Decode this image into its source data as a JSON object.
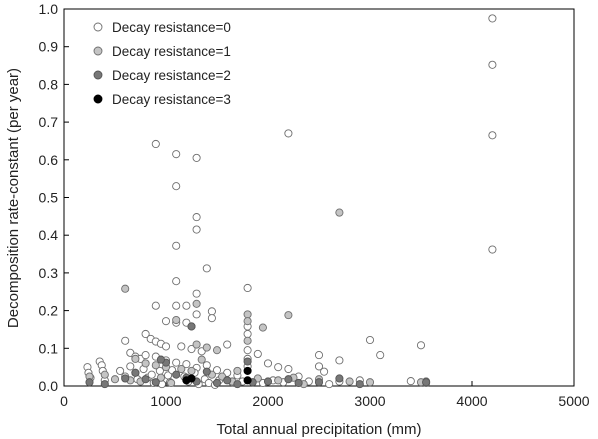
{
  "chart_data": {
    "type": "scatter",
    "xlabel": "Total annual precipitation (mm)",
    "ylabel": "Decomposition rate-constant (per year)",
    "xlim": [
      0,
      5000
    ],
    "ylim": [
      0,
      1.0
    ],
    "x_ticks": [
      "0",
      "1000",
      "2000",
      "3000",
      "4000",
      "5000"
    ],
    "y_ticks": [
      "0.0",
      "0.1",
      "0.2",
      "0.3",
      "0.4",
      "0.5",
      "0.6",
      "0.7",
      "0.8",
      "0.9",
      "1.0"
    ],
    "grid": false,
    "legend_position": "top-left",
    "series": [
      {
        "name": "Decay resistance=0",
        "fill": "#ffffff",
        "stroke": "#6e6e6e",
        "points": [
          [
            4200,
            0.975
          ],
          [
            4200,
            0.852
          ],
          [
            4200,
            0.665
          ],
          [
            4200,
            0.362
          ],
          [
            900,
            0.642
          ],
          [
            1100,
            0.615
          ],
          [
            1300,
            0.605
          ],
          [
            1100,
            0.53
          ],
          [
            2200,
            0.67
          ],
          [
            1300,
            0.448
          ],
          [
            1300,
            0.415
          ],
          [
            1100,
            0.372
          ],
          [
            1400,
            0.312
          ],
          [
            1100,
            0.278
          ],
          [
            1800,
            0.26
          ],
          [
            1300,
            0.245
          ],
          [
            900,
            0.213
          ],
          [
            1100,
            0.213
          ],
          [
            1200,
            0.213
          ],
          [
            1450,
            0.198
          ],
          [
            1300,
            0.19
          ],
          [
            1000,
            0.172
          ],
          [
            1100,
            0.168
          ],
          [
            1200,
            0.168
          ],
          [
            1450,
            0.18
          ],
          [
            1600,
            0.11
          ],
          [
            1800,
            0.158
          ],
          [
            1800,
            0.138
          ],
          [
            800,
            0.138
          ],
          [
            850,
            0.125
          ],
          [
            900,
            0.118
          ],
          [
            950,
            0.112
          ],
          [
            1000,
            0.105
          ],
          [
            1150,
            0.105
          ],
          [
            1250,
            0.098
          ],
          [
            1350,
            0.092
          ],
          [
            600,
            0.12
          ],
          [
            650,
            0.088
          ],
          [
            700,
            0.078
          ],
          [
            750,
            0.072
          ],
          [
            800,
            0.082
          ],
          [
            900,
            0.078
          ],
          [
            1000,
            0.068
          ],
          [
            1100,
            0.062
          ],
          [
            1200,
            0.058
          ],
          [
            1300,
            0.048
          ],
          [
            1400,
            0.055
          ],
          [
            1500,
            0.042
          ],
          [
            1600,
            0.035
          ],
          [
            1700,
            0.028
          ],
          [
            1800,
            0.095
          ],
          [
            1800,
            0.072
          ],
          [
            1800,
            0.052
          ],
          [
            1900,
            0.085
          ],
          [
            2000,
            0.06
          ],
          [
            2100,
            0.05
          ],
          [
            2200,
            0.045
          ],
          [
            2300,
            0.025
          ],
          [
            2500,
            0.082
          ],
          [
            2500,
            0.052
          ],
          [
            2550,
            0.038
          ],
          [
            2700,
            0.068
          ],
          [
            2700,
            0.012
          ],
          [
            2900,
            0.015
          ],
          [
            3000,
            0.122
          ],
          [
            3100,
            0.082
          ],
          [
            3400,
            0.013
          ],
          [
            3500,
            0.108
          ],
          [
            3550,
            0.012
          ],
          [
            3550,
            0.008
          ],
          [
            230,
            0.05
          ],
          [
            240,
            0.035
          ],
          [
            260,
            0.022
          ],
          [
            350,
            0.065
          ],
          [
            370,
            0.055
          ],
          [
            380,
            0.04
          ],
          [
            400,
            0.015
          ],
          [
            550,
            0.04
          ],
          [
            600,
            0.025
          ],
          [
            650,
            0.052
          ],
          [
            700,
            0.035
          ],
          [
            720,
            0.018
          ],
          [
            780,
            0.045
          ],
          [
            820,
            0.022
          ],
          [
            860,
            0.03
          ],
          [
            940,
            0.04
          ],
          [
            980,
            0.018
          ],
          [
            1020,
            0.028
          ],
          [
            1060,
            0.042
          ],
          [
            1180,
            0.025
          ],
          [
            1220,
            0.012
          ],
          [
            1280,
            0.035
          ],
          [
            1380,
            0.018
          ],
          [
            1420,
            0.008
          ],
          [
            1520,
            0.015
          ],
          [
            1650,
            0.01
          ],
          [
            1750,
            0.012
          ],
          [
            1950,
            0.008
          ],
          [
            2050,
            0.015
          ],
          [
            2150,
            0.01
          ],
          [
            2400,
            0.012
          ],
          [
            2600,
            0.005
          ],
          [
            880,
            0.008
          ],
          [
            960,
            0.005
          ],
          [
            1040,
            0.01
          ],
          [
            1320,
            0.005
          ],
          [
            1480,
            0.003
          ]
        ]
      },
      {
        "name": "Decay resistance=1",
        "fill": "#c4c4c4",
        "stroke": "#6e6e6e",
        "points": [
          [
            600,
            0.258
          ],
          [
            2700,
            0.46
          ],
          [
            1300,
            0.218
          ],
          [
            1100,
            0.175
          ],
          [
            1250,
            0.158
          ],
          [
            1800,
            0.19
          ],
          [
            1800,
            0.172
          ],
          [
            1950,
            0.155
          ],
          [
            2200,
            0.188
          ],
          [
            1800,
            0.12
          ],
          [
            1300,
            0.11
          ],
          [
            1400,
            0.102
          ],
          [
            1500,
            0.095
          ],
          [
            700,
            0.072
          ],
          [
            800,
            0.06
          ],
          [
            900,
            0.055
          ],
          [
            1000,
            0.05
          ],
          [
            1150,
            0.045
          ],
          [
            1250,
            0.04
          ],
          [
            1350,
            0.07
          ],
          [
            1450,
            0.03
          ],
          [
            1550,
            0.025
          ],
          [
            1700,
            0.04
          ],
          [
            1900,
            0.02
          ],
          [
            2100,
            0.015
          ],
          [
            2250,
            0.022
          ],
          [
            2500,
            0.018
          ],
          [
            2800,
            0.012
          ],
          [
            3000,
            0.01
          ],
          [
            250,
            0.025
          ],
          [
            400,
            0.03
          ],
          [
            500,
            0.018
          ],
          [
            650,
            0.015
          ],
          [
            750,
            0.012
          ],
          [
            950,
            0.022
          ],
          [
            1050,
            0.008
          ],
          [
            1650,
            0.012
          ],
          [
            2350,
            0.005
          ],
          [
            3500,
            0.01
          ]
        ]
      },
      {
        "name": "Decay resistance=2",
        "fill": "#777777",
        "stroke": "#555555",
        "points": [
          [
            1250,
            0.158
          ],
          [
            1800,
            0.065
          ],
          [
            1400,
            0.038
          ],
          [
            1000,
            0.062
          ],
          [
            950,
            0.07
          ],
          [
            1100,
            0.03
          ],
          [
            1200,
            0.022
          ],
          [
            1300,
            0.012
          ],
          [
            600,
            0.02
          ],
          [
            700,
            0.035
          ],
          [
            800,
            0.018
          ],
          [
            900,
            0.01
          ],
          [
            250,
            0.01
          ],
          [
            400,
            0.005
          ],
          [
            1500,
            0.008
          ],
          [
            1600,
            0.015
          ],
          [
            1850,
            0.01
          ],
          [
            2000,
            0.012
          ],
          [
            2200,
            0.018
          ],
          [
            2300,
            0.008
          ],
          [
            2500,
            0.01
          ],
          [
            2700,
            0.02
          ],
          [
            1700,
            0.005
          ],
          [
            2900,
            0.005
          ],
          [
            3550,
            0.01
          ]
        ]
      },
      {
        "name": "Decay resistance=3",
        "fill": "#000000",
        "stroke": "#000000",
        "points": [
          [
            1200,
            0.015
          ],
          [
            1250,
            0.02
          ],
          [
            1800,
            0.04
          ],
          [
            1800,
            0.015
          ]
        ]
      }
    ]
  }
}
